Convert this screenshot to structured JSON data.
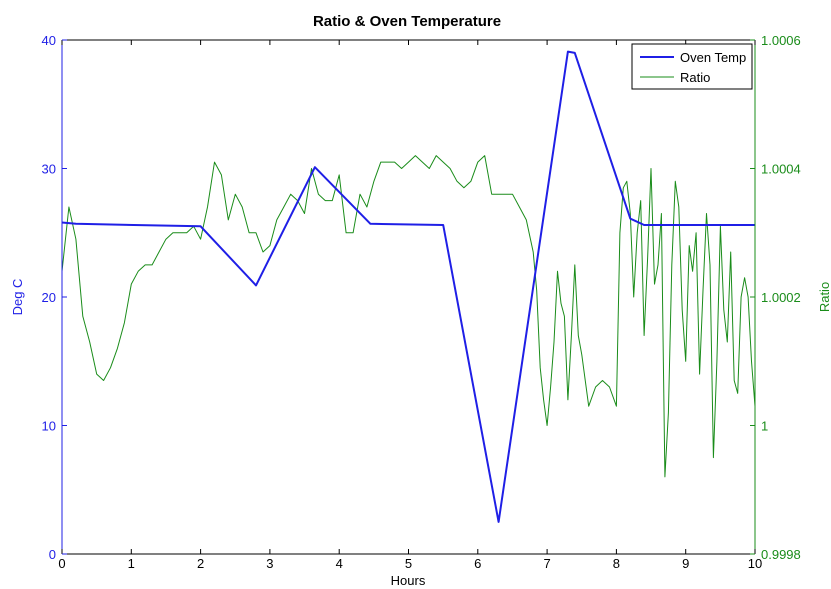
{
  "chart_data": {
    "type": "line",
    "title": "Ratio & Oven Temperature",
    "xlabel": "Hours",
    "ylabel_left": "Deg C",
    "ylabel_right": "Ratio",
    "xlim": [
      0,
      10
    ],
    "ylim_left": [
      0,
      40
    ],
    "ylim_right": [
      0.9998,
      1.0006
    ],
    "x_ticks": [
      "0",
      "1",
      "2",
      "3",
      "4",
      "5",
      "6",
      "7",
      "8",
      "9",
      "10"
    ],
    "y_left_ticks": [
      "0",
      "10",
      "20",
      "30",
      "40"
    ],
    "y_right_ticks": [
      "0.9998",
      "1",
      "1.0002",
      "1.0004",
      "1.0006"
    ],
    "legend_position": "top-right",
    "grid": false,
    "colors": {
      "oven": "#1f1fe6",
      "ratio": "#1a8c1a",
      "axis": "#000000"
    },
    "series": [
      {
        "name": "Oven Temp",
        "axis": "left",
        "x": [
          0,
          0.2,
          2.0,
          2.8,
          3.65,
          4.45,
          5.5,
          6.3,
          7.3,
          7.4,
          8.2,
          8.4,
          10
        ],
        "y": [
          25.8,
          25.7,
          25.5,
          20.9,
          30.1,
          25.7,
          25.6,
          2.5,
          39.1,
          39.0,
          26.1,
          25.6,
          25.6
        ]
      },
      {
        "name": "Ratio",
        "axis": "right",
        "x": [
          0,
          0.1,
          0.2,
          0.3,
          0.4,
          0.5,
          0.6,
          0.7,
          0.8,
          0.9,
          1.0,
          1.1,
          1.2,
          1.3,
          1.4,
          1.5,
          1.6,
          1.7,
          1.8,
          1.9,
          2.0,
          2.1,
          2.2,
          2.3,
          2.4,
          2.5,
          2.6,
          2.7,
          2.8,
          2.9,
          3.0,
          3.1,
          3.2,
          3.3,
          3.4,
          3.5,
          3.6,
          3.7,
          3.8,
          3.9,
          4.0,
          4.1,
          4.2,
          4.3,
          4.4,
          4.5,
          4.6,
          4.7,
          4.8,
          4.9,
          5.0,
          5.1,
          5.2,
          5.3,
          5.4,
          5.5,
          5.6,
          5.7,
          5.8,
          5.9,
          6.0,
          6.1,
          6.2,
          6.3,
          6.4,
          6.5,
          6.6,
          6.7,
          6.8,
          6.85,
          6.9,
          6.95,
          7.0,
          7.05,
          7.1,
          7.15,
          7.2,
          7.25,
          7.3,
          7.35,
          7.4,
          7.45,
          7.5,
          7.6,
          7.7,
          7.8,
          7.9,
          8.0,
          8.05,
          8.1,
          8.15,
          8.2,
          8.25,
          8.3,
          8.35,
          8.4,
          8.45,
          8.5,
          8.55,
          8.6,
          8.65,
          8.7,
          8.75,
          8.8,
          8.85,
          8.9,
          8.95,
          9.0,
          9.05,
          9.1,
          9.15,
          9.2,
          9.25,
          9.3,
          9.35,
          9.4,
          9.45,
          9.5,
          9.55,
          9.6,
          9.65,
          9.7,
          9.75,
          9.8,
          9.85,
          9.9,
          9.95,
          10.0
        ],
        "y": [
          1.00024,
          1.00034,
          1.00029,
          1.00017,
          1.00013,
          1.00008,
          1.00007,
          1.00009,
          1.00012,
          1.00016,
          1.00022,
          1.00024,
          1.00025,
          1.00025,
          1.00027,
          1.00029,
          1.0003,
          1.0003,
          1.0003,
          1.00031,
          1.00029,
          1.00034,
          1.00041,
          1.00039,
          1.00032,
          1.00036,
          1.00034,
          1.0003,
          1.0003,
          1.00027,
          1.00028,
          1.00032,
          1.00034,
          1.00036,
          1.00035,
          1.00033,
          1.0004,
          1.00036,
          1.00035,
          1.00035,
          1.00039,
          1.0003,
          1.0003,
          1.00036,
          1.00034,
          1.00038,
          1.00041,
          1.00041,
          1.00041,
          1.0004,
          1.00041,
          1.00042,
          1.00041,
          1.0004,
          1.00042,
          1.00041,
          1.0004,
          1.00038,
          1.00037,
          1.00038,
          1.00041,
          1.00042,
          1.00036,
          1.00036,
          1.00036,
          1.00036,
          1.00034,
          1.00032,
          1.00027,
          1.00021,
          1.00009,
          1.00004,
          1.0,
          1.00006,
          1.00013,
          1.00024,
          1.00019,
          1.00017,
          1.00004,
          1.00014,
          1.00025,
          1.00014,
          1.00011,
          1.00003,
          1.00006,
          1.00007,
          1.00006,
          1.00003,
          1.0003,
          1.00037,
          1.00038,
          1.00033,
          1.0002,
          1.0003,
          1.00035,
          1.00014,
          1.00026,
          1.0004,
          1.00022,
          1.00025,
          1.00033,
          0.99992,
          1.00002,
          1.00025,
          1.00038,
          1.00034,
          1.00018,
          1.0001,
          1.00028,
          1.00024,
          1.0003,
          1.00008,
          1.00021,
          1.00033,
          1.00025,
          0.99995,
          1.0001,
          1.00031,
          1.00018,
          1.00013,
          1.00027,
          1.00007,
          1.00005,
          1.0002,
          1.00023,
          1.0002,
          1.0001,
          1.00003
        ]
      }
    ]
  }
}
